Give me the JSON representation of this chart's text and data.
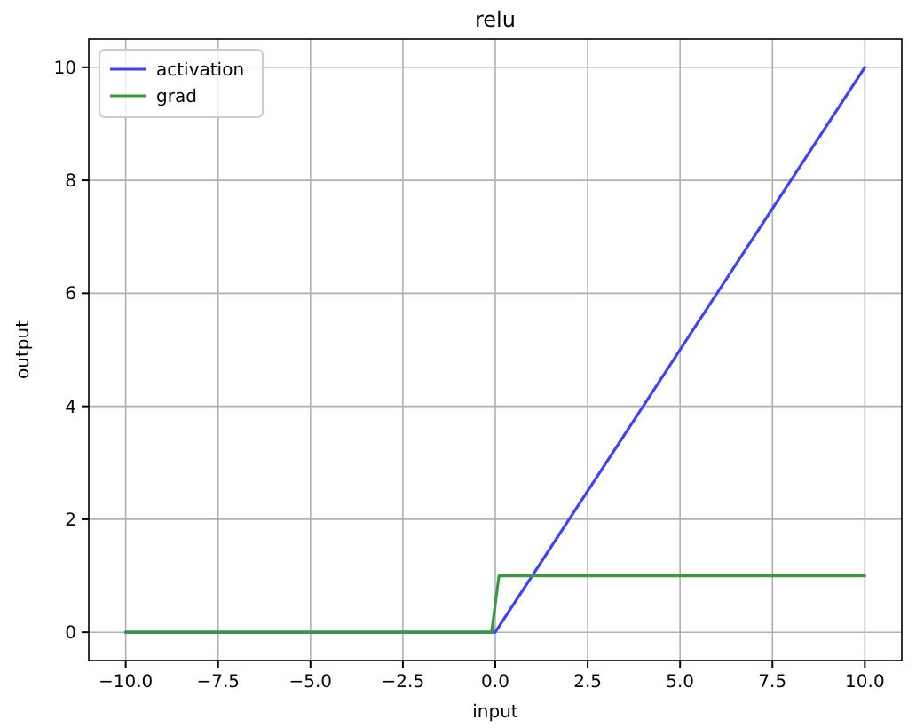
{
  "chart_data": {
    "type": "line",
    "title": "relu",
    "xlabel": "input",
    "ylabel": "output",
    "xlim": [
      -11,
      11
    ],
    "xticks": [
      {
        "value": -10,
        "label": "−10.0"
      },
      {
        "value": -7.5,
        "label": "−7.5"
      },
      {
        "value": -5,
        "label": "−5.0"
      },
      {
        "value": -2.5,
        "label": "−2.5"
      },
      {
        "value": 0,
        "label": "0.0"
      },
      {
        "value": 2.5,
        "label": "2.5"
      },
      {
        "value": 5,
        "label": "5.0"
      },
      {
        "value": 7.5,
        "label": "7.5"
      },
      {
        "value": 10,
        "label": "10.0"
      }
    ],
    "ylim": [
      -0.5,
      10.5
    ],
    "yticks": [
      0,
      2,
      4,
      6,
      8,
      10
    ],
    "grid": true,
    "legend": "top left",
    "line_style": "solid",
    "series": [
      {
        "name": "activation",
        "color": "#4040ff",
        "x": [
          -10,
          -0.1,
          0,
          10
        ],
        "values": [
          0,
          0,
          0,
          10
        ]
      },
      {
        "name": "grad",
        "color": "#3a9a3a",
        "x": [
          -10,
          -0.1,
          0.1,
          10
        ],
        "values": [
          0,
          0,
          1,
          1
        ]
      }
    ]
  }
}
